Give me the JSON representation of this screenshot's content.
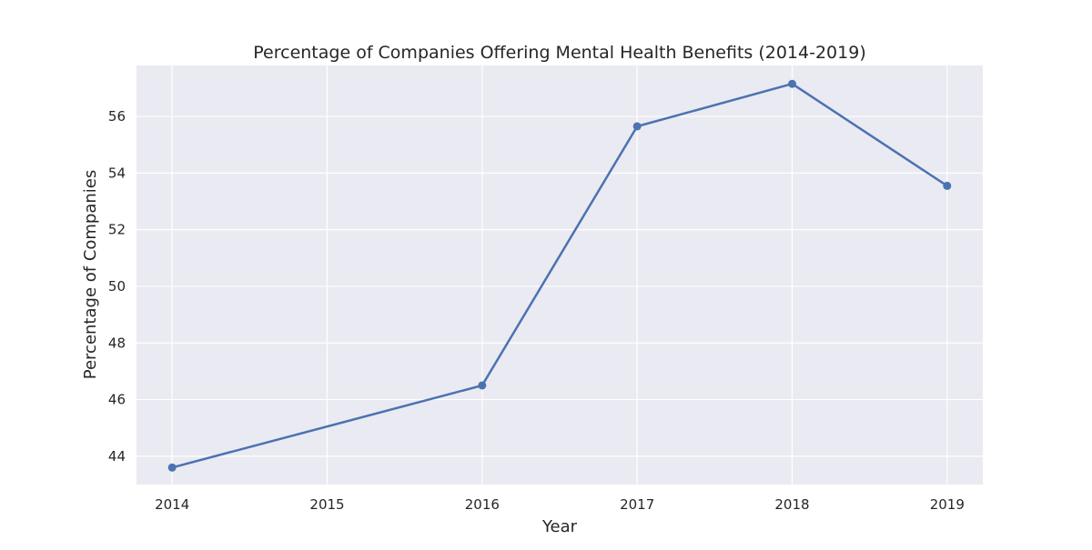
{
  "chart_data": {
    "type": "line",
    "title": "Percentage of Companies Offering Mental Health Benefits (2014-2019)",
    "xlabel": "Year",
    "ylabel": "Percentage of Companies",
    "x": [
      2014,
      2016,
      2017,
      2018,
      2019
    ],
    "x_ticks": [
      "2014",
      "2015",
      "2016",
      "2017",
      "2018",
      "2019"
    ],
    "y_ticks": [
      "44",
      "46",
      "48",
      "50",
      "52",
      "54",
      "56"
    ],
    "series": [
      {
        "name": "",
        "values": [
          43.6,
          46.5,
          55.65,
          57.15,
          53.55
        ]
      }
    ],
    "xlim": [
      2013.77,
      2019.23
    ],
    "ylim": [
      43.0,
      57.8
    ],
    "grid": true,
    "legend": "none",
    "colors": {
      "background": "#eaeaf2",
      "grid": "#ffffff",
      "line": "#4c72b0"
    }
  }
}
